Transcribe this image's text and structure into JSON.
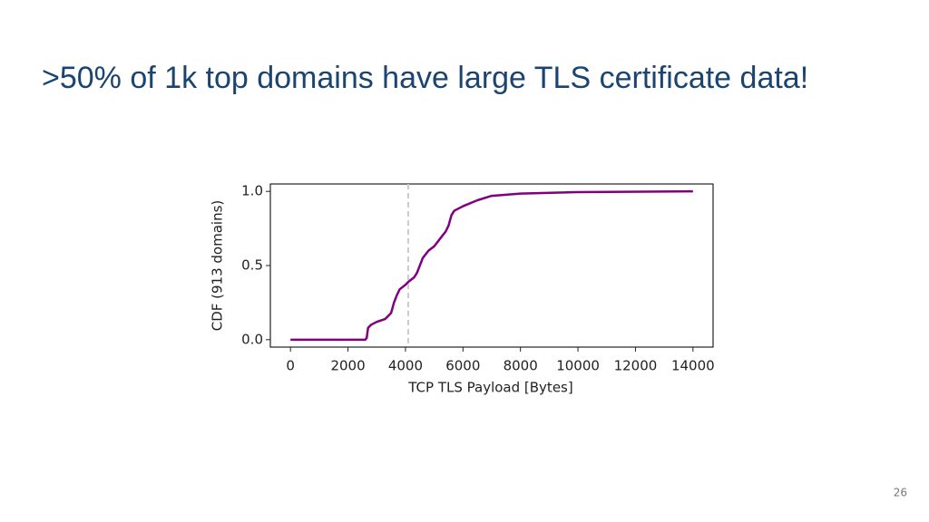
{
  "slide_title": ">50% of 1k top domains have large TLS certificate data!",
  "page_number": "26",
  "chart_data": {
    "type": "line",
    "xlabel": "TCP TLS Payload [Bytes]",
    "ylabel": "CDF (913 domains)",
    "x": [
      0,
      2600,
      2650,
      2700,
      2800,
      3000,
      3300,
      3500,
      3600,
      3700,
      3800,
      4000,
      4100,
      4300,
      4400,
      4500,
      4600,
      4800,
      5000,
      5200,
      5400,
      5500,
      5600,
      5700,
      6000,
      6500,
      7000,
      8000,
      10000,
      14000
    ],
    "values": [
      0,
      0,
      0.01,
      0.08,
      0.1,
      0.12,
      0.14,
      0.18,
      0.25,
      0.3,
      0.34,
      0.37,
      0.39,
      0.42,
      0.45,
      0.5,
      0.55,
      0.6,
      0.63,
      0.68,
      0.73,
      0.77,
      0.84,
      0.87,
      0.9,
      0.94,
      0.97,
      0.985,
      0.995,
      1.0
    ],
    "color": "#800080",
    "vline": 4096,
    "vline_color": "#cccccc",
    "xlim": [
      -700,
      14700
    ],
    "ylim": [
      -0.05,
      1.05
    ],
    "xticks": [
      0,
      2000,
      4000,
      6000,
      8000,
      10000,
      12000,
      14000
    ],
    "yticks": [
      {
        "value": 0,
        "label": "0.0"
      },
      0.5,
      {
        "value": 1,
        "label": "1.0"
      }
    ]
  }
}
